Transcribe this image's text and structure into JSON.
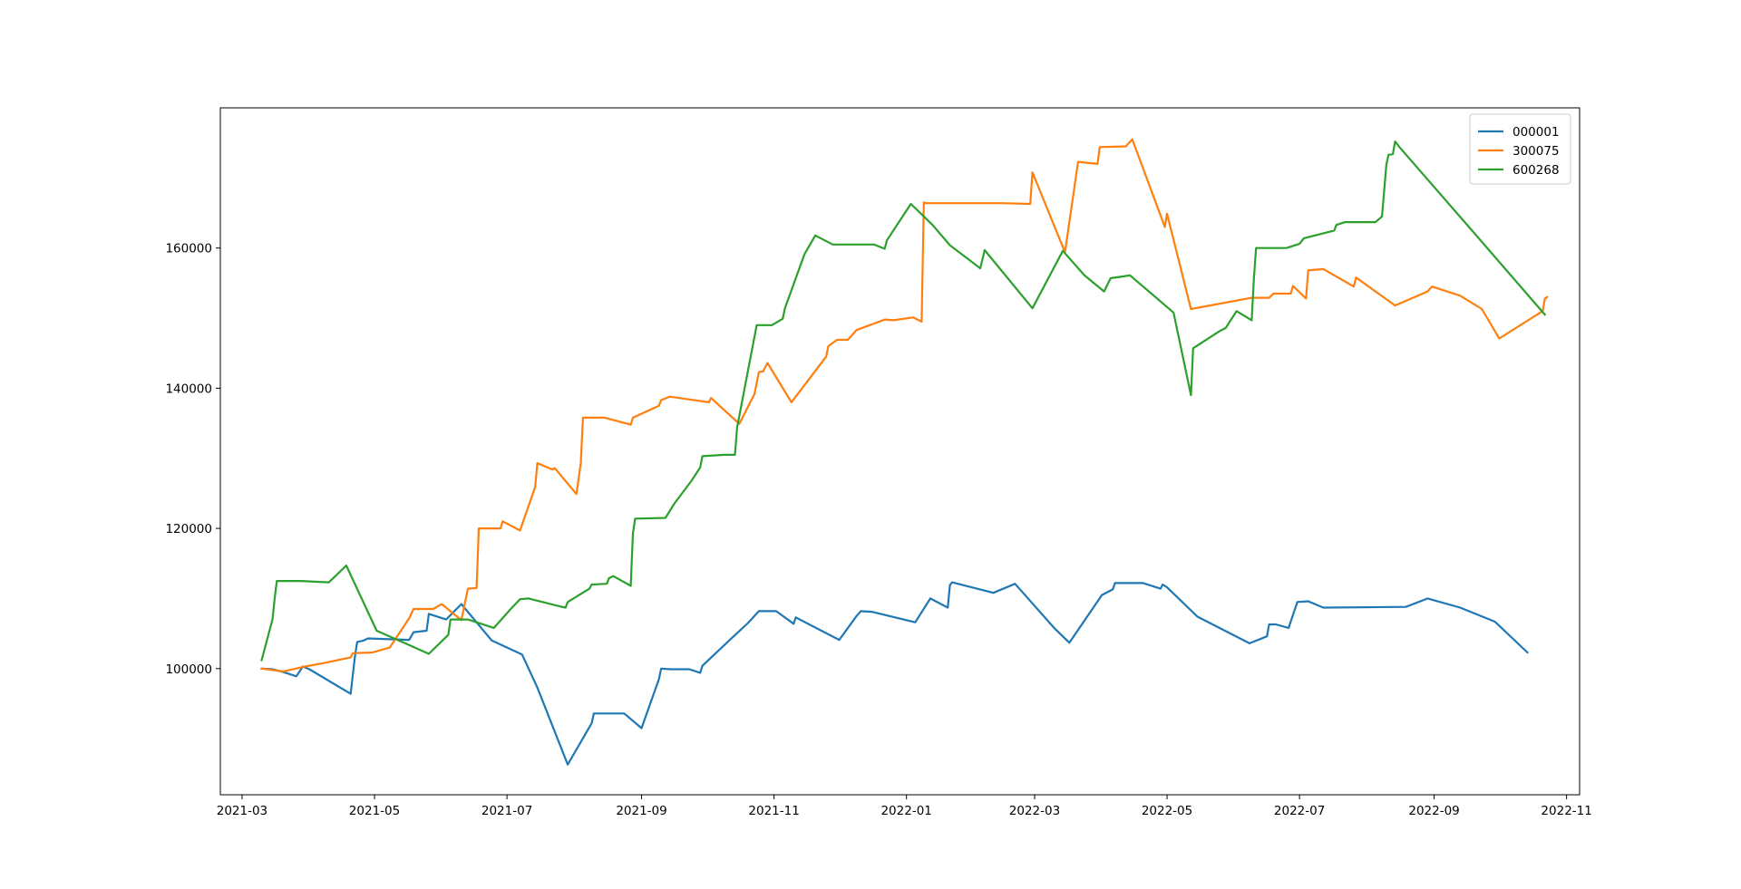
{
  "chart_data": {
    "type": "line",
    "title": "",
    "xlabel": "",
    "ylabel": "",
    "xlim": [
      "2021-02-19",
      "2022-11-07"
    ],
    "ylim": [
      82000,
      180000
    ],
    "grid": false,
    "legend_position": "upper right",
    "x_ticks": [
      "2021-03-01",
      "2021-05-01",
      "2021-07-01",
      "2021-09-01",
      "2021-11-01",
      "2022-01-01",
      "2022-03-01",
      "2022-05-01",
      "2022-07-01",
      "2022-09-01",
      "2022-11-01"
    ],
    "x_tick_labels": [
      "2021-03",
      "2021-05",
      "2021-07",
      "2021-09",
      "2021-11",
      "2022-01",
      "2022-03",
      "2022-05",
      "2022-07",
      "2022-09",
      "2022-11"
    ],
    "y_ticks": [
      100000,
      120000,
      140000,
      160000
    ],
    "y_tick_labels": [
      "100000",
      "120000",
      "140000",
      "160000"
    ],
    "series": [
      {
        "name": "000001",
        "color": "#1f77b4",
        "points": [
          [
            "2021-03-10",
            100000
          ],
          [
            "2021-03-15",
            99900
          ],
          [
            "2021-03-20",
            99500
          ],
          [
            "2021-03-26",
            98900
          ],
          [
            "2021-03-29",
            100300
          ],
          [
            "2021-04-01",
            99900
          ],
          [
            "2021-04-20",
            96400
          ],
          [
            "2021-04-22",
            101800
          ],
          [
            "2021-04-23",
            103800
          ],
          [
            "2021-04-26",
            104000
          ],
          [
            "2021-04-28",
            104300
          ],
          [
            "2021-05-17",
            104100
          ],
          [
            "2021-05-19",
            105200
          ],
          [
            "2021-05-25",
            105400
          ],
          [
            "2021-05-26",
            107800
          ],
          [
            "2021-06-03",
            107000
          ],
          [
            "2021-06-10",
            109200
          ],
          [
            "2021-06-24",
            104000
          ],
          [
            "2021-07-08",
            102000
          ],
          [
            "2021-07-15",
            97300
          ],
          [
            "2021-07-29",
            86300
          ],
          [
            "2021-08-09",
            92200
          ],
          [
            "2021-08-10",
            93600
          ],
          [
            "2021-08-24",
            93600
          ],
          [
            "2021-09-01",
            91500
          ],
          [
            "2021-09-09",
            98500
          ],
          [
            "2021-09-10",
            100000
          ],
          [
            "2021-09-14",
            99900
          ],
          [
            "2021-09-23",
            99900
          ],
          [
            "2021-09-28",
            99400
          ],
          [
            "2021-09-29",
            100400
          ],
          [
            "2021-10-12",
            104200
          ],
          [
            "2021-10-20",
            106500
          ],
          [
            "2021-10-25",
            108200
          ],
          [
            "2021-11-02",
            108200
          ],
          [
            "2021-11-10",
            106400
          ],
          [
            "2021-11-11",
            107300
          ],
          [
            "2021-12-01",
            104100
          ],
          [
            "2021-12-09",
            107500
          ],
          [
            "2021-12-11",
            108200
          ],
          [
            "2021-12-16",
            108100
          ],
          [
            "2022-01-05",
            106600
          ],
          [
            "2022-01-12",
            110000
          ],
          [
            "2022-01-20",
            108700
          ],
          [
            "2022-01-21",
            111900
          ],
          [
            "2022-01-22",
            112300
          ],
          [
            "2022-02-10",
            110800
          ],
          [
            "2022-02-20",
            112100
          ],
          [
            "2022-03-10",
            105800
          ],
          [
            "2022-03-17",
            103700
          ],
          [
            "2022-04-01",
            110500
          ],
          [
            "2022-04-06",
            111300
          ],
          [
            "2022-04-07",
            112200
          ],
          [
            "2022-04-20",
            112200
          ],
          [
            "2022-04-28",
            111400
          ],
          [
            "2022-04-29",
            112000
          ],
          [
            "2022-05-01",
            111600
          ],
          [
            "2022-05-15",
            107400
          ],
          [
            "2022-06-08",
            103600
          ],
          [
            "2022-06-16",
            104600
          ],
          [
            "2022-06-17",
            106300
          ],
          [
            "2022-06-20",
            106300
          ],
          [
            "2022-06-26",
            105800
          ],
          [
            "2022-06-30",
            109500
          ],
          [
            "2022-07-05",
            109600
          ],
          [
            "2022-07-12",
            108700
          ],
          [
            "2022-08-19",
            108800
          ],
          [
            "2022-08-29",
            110000
          ],
          [
            "2022-09-13",
            108700
          ],
          [
            "2022-09-29",
            106700
          ],
          [
            "2022-10-14",
            102300
          ]
        ]
      },
      {
        "name": "300075",
        "color": "#ff7f0e",
        "points": [
          [
            "2021-03-10",
            100000
          ],
          [
            "2021-03-20",
            99600
          ],
          [
            "2021-03-30",
            100300
          ],
          [
            "2021-04-08",
            100800
          ],
          [
            "2021-04-20",
            101600
          ],
          [
            "2021-04-21",
            102200
          ],
          [
            "2021-04-30",
            102300
          ],
          [
            "2021-05-08",
            103000
          ],
          [
            "2021-05-17",
            107200
          ],
          [
            "2021-05-19",
            108500
          ],
          [
            "2021-05-28",
            108500
          ],
          [
            "2021-06-01",
            109200
          ],
          [
            "2021-06-10",
            106900
          ],
          [
            "2021-06-13",
            111400
          ],
          [
            "2021-06-17",
            111500
          ],
          [
            "2021-06-18",
            120000
          ],
          [
            "2021-06-28",
            120000
          ],
          [
            "2021-06-29",
            121000
          ],
          [
            "2021-07-07",
            119700
          ],
          [
            "2021-07-14",
            125900
          ],
          [
            "2021-07-15",
            129300
          ],
          [
            "2021-07-22",
            128400
          ],
          [
            "2021-07-23",
            128600
          ],
          [
            "2021-08-02",
            124900
          ],
          [
            "2021-08-04",
            129300
          ],
          [
            "2021-08-05",
            135800
          ],
          [
            "2021-08-15",
            135800
          ],
          [
            "2021-08-27",
            134800
          ],
          [
            "2021-08-28",
            135800
          ],
          [
            "2021-09-09",
            137500
          ],
          [
            "2021-09-10",
            138300
          ],
          [
            "2021-09-14",
            138800
          ],
          [
            "2021-10-02",
            138000
          ],
          [
            "2021-10-03",
            138600
          ],
          [
            "2021-10-16",
            134900
          ],
          [
            "2021-10-23",
            139200
          ],
          [
            "2021-10-25",
            142300
          ],
          [
            "2021-10-27",
            142400
          ],
          [
            "2021-10-29",
            143600
          ],
          [
            "2021-11-09",
            138000
          ],
          [
            "2021-11-25",
            144500
          ],
          [
            "2021-11-26",
            146000
          ],
          [
            "2021-11-30",
            146900
          ],
          [
            "2021-12-05",
            146900
          ],
          [
            "2021-12-07",
            147600
          ],
          [
            "2021-12-09",
            148300
          ],
          [
            "2021-12-22",
            149800
          ],
          [
            "2021-12-26",
            149700
          ],
          [
            "2022-01-04",
            150100
          ],
          [
            "2022-01-08",
            149500
          ],
          [
            "2022-01-09",
            166500
          ],
          [
            "2022-01-10",
            166400
          ],
          [
            "2022-02-14",
            166400
          ],
          [
            "2022-02-27",
            166300
          ],
          [
            "2022-02-28",
            170800
          ],
          [
            "2022-03-15",
            159400
          ],
          [
            "2022-03-21",
            172300
          ],
          [
            "2022-03-30",
            172000
          ],
          [
            "2022-03-31",
            174400
          ],
          [
            "2022-04-12",
            174500
          ],
          [
            "2022-04-15",
            175500
          ],
          [
            "2022-04-30",
            163000
          ],
          [
            "2022-05-01",
            164900
          ],
          [
            "2022-05-12",
            151300
          ],
          [
            "2022-06-09",
            152900
          ],
          [
            "2022-06-17",
            152900
          ],
          [
            "2022-06-19",
            153500
          ],
          [
            "2022-06-27",
            153500
          ],
          [
            "2022-06-28",
            154600
          ],
          [
            "2022-07-04",
            152800
          ],
          [
            "2022-07-05",
            156800
          ],
          [
            "2022-07-12",
            157000
          ],
          [
            "2022-07-26",
            154500
          ],
          [
            "2022-07-27",
            155800
          ],
          [
            "2022-08-14",
            151800
          ],
          [
            "2022-08-29",
            153800
          ],
          [
            "2022-08-31",
            154500
          ],
          [
            "2022-09-13",
            153200
          ],
          [
            "2022-09-23",
            151300
          ],
          [
            "2022-09-31",
            147100
          ],
          [
            "2022-10-21",
            151000
          ],
          [
            "2022-10-22",
            152800
          ],
          [
            "2022-10-23",
            153000
          ]
        ]
      },
      {
        "name": "600268",
        "color": "#2ca02c",
        "points": [
          [
            "2021-03-10",
            101200
          ],
          [
            "2021-03-15",
            107000
          ],
          [
            "2021-03-16",
            110000
          ],
          [
            "2021-03-17",
            112500
          ],
          [
            "2021-03-28",
            112500
          ],
          [
            "2021-04-10",
            112300
          ],
          [
            "2021-04-18",
            114700
          ],
          [
            "2021-05-02",
            105400
          ],
          [
            "2021-05-16",
            103500
          ],
          [
            "2021-05-26",
            102100
          ],
          [
            "2021-06-04",
            104800
          ],
          [
            "2021-06-05",
            107000
          ],
          [
            "2021-06-13",
            107000
          ],
          [
            "2021-06-25",
            105800
          ],
          [
            "2021-07-03",
            108600
          ],
          [
            "2021-07-07",
            109900
          ],
          [
            "2021-07-11",
            110000
          ],
          [
            "2021-07-25",
            108900
          ],
          [
            "2021-07-28",
            108700
          ],
          [
            "2021-07-29",
            109500
          ],
          [
            "2021-08-08",
            111400
          ],
          [
            "2021-08-09",
            112000
          ],
          [
            "2021-08-16",
            112100
          ],
          [
            "2021-08-17",
            112900
          ],
          [
            "2021-08-19",
            113200
          ],
          [
            "2021-08-27",
            111800
          ],
          [
            "2021-08-28",
            119300
          ],
          [
            "2021-08-29",
            121400
          ],
          [
            "2021-09-12",
            121500
          ],
          [
            "2021-09-16",
            123500
          ],
          [
            "2021-09-24",
            126800
          ],
          [
            "2021-09-28",
            128700
          ],
          [
            "2021-09-29",
            130300
          ],
          [
            "2021-10-09",
            130500
          ],
          [
            "2021-10-14",
            130500
          ],
          [
            "2021-10-15",
            134400
          ],
          [
            "2021-10-24",
            149000
          ],
          [
            "2021-10-31",
            149000
          ],
          [
            "2021-11-05",
            149900
          ],
          [
            "2021-11-06",
            151400
          ],
          [
            "2021-11-15",
            159100
          ],
          [
            "2021-11-20",
            161800
          ],
          [
            "2021-11-28",
            160500
          ],
          [
            "2021-12-17",
            160500
          ],
          [
            "2021-12-22",
            159900
          ],
          [
            "2021-12-23",
            161100
          ],
          [
            "2022-01-03",
            166300
          ],
          [
            "2022-01-13",
            163300
          ],
          [
            "2022-01-21",
            160400
          ],
          [
            "2022-02-04",
            157100
          ],
          [
            "2022-02-06",
            159700
          ],
          [
            "2022-02-28",
            151400
          ],
          [
            "2022-03-14",
            159600
          ],
          [
            "2022-03-24",
            156100
          ],
          [
            "2022-04-02",
            153800
          ],
          [
            "2022-04-05",
            155700
          ],
          [
            "2022-04-14",
            156100
          ],
          [
            "2022-05-04",
            150800
          ],
          [
            "2022-05-12",
            139000
          ],
          [
            "2022-05-13",
            145700
          ],
          [
            "2022-05-25",
            148100
          ],
          [
            "2022-05-28",
            148600
          ],
          [
            "2022-06-02",
            151000
          ],
          [
            "2022-06-09",
            149700
          ],
          [
            "2022-06-10",
            155600
          ],
          [
            "2022-06-11",
            160000
          ],
          [
            "2022-06-25",
            160000
          ],
          [
            "2022-07-01",
            160600
          ],
          [
            "2022-07-03",
            161400
          ],
          [
            "2022-07-17",
            162500
          ],
          [
            "2022-07-18",
            163300
          ],
          [
            "2022-07-22",
            163700
          ],
          [
            "2022-08-05",
            163700
          ],
          [
            "2022-08-08",
            164500
          ],
          [
            "2022-08-10",
            171900
          ],
          [
            "2022-08-11",
            173300
          ],
          [
            "2022-08-13",
            173400
          ],
          [
            "2022-08-14",
            175200
          ],
          [
            "2022-08-16",
            174400
          ],
          [
            "2022-09-19",
            162300
          ],
          [
            "2022-10-22",
            150500
          ]
        ]
      }
    ]
  }
}
